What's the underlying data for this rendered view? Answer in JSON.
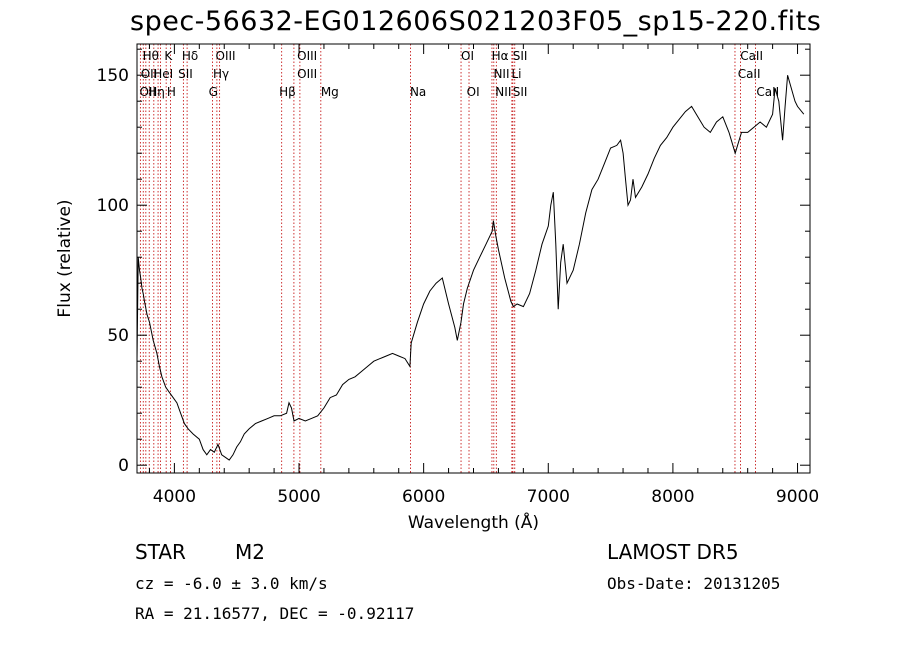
{
  "chart_data": {
    "type": "line",
    "title": "spec-56632-EG012606S021203F05_sp15-220.fits",
    "xlabel": "Wavelength (Å)",
    "ylabel": "Flux (relative)",
    "xlim": [
      3700,
      9100
    ],
    "ylim": [
      -3,
      162
    ],
    "xticks": [
      4000,
      5000,
      6000,
      7000,
      8000,
      9000
    ],
    "yticks": [
      0,
      50,
      100,
      150
    ],
    "x": [
      3700,
      3710,
      3720,
      3730,
      3740,
      3750,
      3760,
      3780,
      3800,
      3830,
      3860,
      3880,
      3900,
      3930,
      3960,
      3990,
      4020,
      4050,
      4080,
      4110,
      4150,
      4200,
      4230,
      4260,
      4290,
      4320,
      4350,
      4380,
      4410,
      4440,
      4470,
      4500,
      4530,
      4560,
      4600,
      4650,
      4700,
      4750,
      4800,
      4850,
      4900,
      4920,
      4940,
      4960,
      5000,
      5050,
      5100,
      5150,
      5200,
      5250,
      5300,
      5350,
      5400,
      5450,
      5500,
      5550,
      5600,
      5650,
      5700,
      5750,
      5800,
      5850,
      5890,
      5900,
      5950,
      6000,
      6050,
      6100,
      6150,
      6200,
      6250,
      6270,
      6300,
      6320,
      6350,
      6400,
      6450,
      6500,
      6550,
      6560,
      6580,
      6600,
      6650,
      6700,
      6720,
      6750,
      6800,
      6850,
      6900,
      6950,
      7000,
      7020,
      7040,
      7060,
      7080,
      7100,
      7120,
      7150,
      7200,
      7250,
      7300,
      7350,
      7400,
      7450,
      7500,
      7550,
      7580,
      7600,
      7620,
      7640,
      7660,
      7680,
      7700,
      7750,
      7800,
      7850,
      7900,
      7950,
      8000,
      8050,
      8100,
      8150,
      8200,
      8250,
      8300,
      8350,
      8400,
      8450,
      8500,
      8550,
      8600,
      8650,
      8700,
      8750,
      8800,
      8820,
      8850,
      8880,
      8900,
      8920,
      8950,
      8980,
      9000,
      9050
    ],
    "y": [
      40,
      80,
      75,
      72,
      68,
      66,
      63,
      58,
      55,
      48,
      43,
      38,
      34,
      30,
      28,
      26,
      24,
      20,
      16,
      14,
      12,
      10,
      6,
      4,
      6,
      5,
      8,
      4,
      3,
      2,
      4,
      7,
      9,
      12,
      14,
      16,
      17,
      18,
      19,
      19,
      20,
      24,
      22,
      17,
      18,
      17,
      18,
      19,
      22,
      26,
      27,
      31,
      33,
      34,
      36,
      38,
      40,
      41,
      42,
      43,
      42,
      41,
      38,
      47,
      55,
      62,
      67,
      70,
      72,
      62,
      53,
      48,
      55,
      62,
      68,
      75,
      80,
      85,
      90,
      94,
      88,
      83,
      72,
      63,
      61,
      62,
      61,
      66,
      75,
      85,
      92,
      100,
      105,
      85,
      60,
      78,
      85,
      70,
      75,
      85,
      97,
      106,
      110,
      116,
      122,
      123,
      125,
      120,
      110,
      100,
      102,
      110,
      103,
      107,
      112,
      118,
      123,
      126,
      130,
      133,
      136,
      138,
      134,
      130,
      128,
      132,
      134,
      128,
      120,
      128,
      128,
      130,
      132,
      130,
      135,
      145,
      140,
      125,
      138,
      150,
      145,
      140,
      138,
      135
    ],
    "lines": [
      {
        "wave": 3727,
        "labels": [
          "OII"
        ]
      },
      {
        "wave": 3750,
        "labels": [
          "Hθ"
        ]
      },
      {
        "wave": 3771,
        "labels": [
          "OIII"
        ]
      },
      {
        "wave": 3798,
        "labels": [
          "Hθ"
        ]
      },
      {
        "wave": 3835,
        "labels": [
          "Hη"
        ]
      },
      {
        "wave": 3869,
        "labels": [
          "HeI"
        ]
      },
      {
        "wave": 3889,
        "labels": [
          "HeI"
        ]
      },
      {
        "wave": 3934,
        "labels": [
          "K"
        ]
      },
      {
        "wave": 3969,
        "labels": [
          "H"
        ]
      },
      {
        "wave": 4072,
        "labels": [
          "SII"
        ]
      },
      {
        "wave": 4102,
        "labels": [
          "Hδ"
        ]
      },
      {
        "wave": 4305,
        "labels": [
          "G"
        ]
      },
      {
        "wave": 4341,
        "labels": [
          "Hγ"
        ]
      },
      {
        "wave": 4363,
        "labels": [
          "OIII"
        ]
      },
      {
        "wave": 4861,
        "labels": [
          "Hβ"
        ]
      },
      {
        "wave": 4959,
        "labels": [
          "OIII"
        ]
      },
      {
        "wave": 5007,
        "labels": [
          "OIII"
        ]
      },
      {
        "wave": 5175,
        "labels": [
          "Mg"
        ]
      },
      {
        "wave": 5894,
        "labels": [
          "Na"
        ]
      },
      {
        "wave": 6300,
        "labels": [
          "OI"
        ]
      },
      {
        "wave": 6364,
        "labels": [
          "OI"
        ]
      },
      {
        "wave": 6548,
        "labels": [
          "NII"
        ]
      },
      {
        "wave": 6563,
        "labels": [
          "Hα"
        ]
      },
      {
        "wave": 6583,
        "labels": [
          "NII"
        ]
      },
      {
        "wave": 6708,
        "labels": [
          "Li"
        ]
      },
      {
        "wave": 6716,
        "labels": [
          "SII"
        ]
      },
      {
        "wave": 6731,
        "labels": [
          "SII"
        ]
      },
      {
        "wave": 8498,
        "labels": [
          "CaII"
        ]
      },
      {
        "wave": 8542,
        "labels": [
          "CaII"
        ]
      },
      {
        "wave": 8662,
        "labels": [
          "CaII"
        ]
      }
    ],
    "line_labels_row1": [
      {
        "wave": 3745,
        "text": "Hθ"
      },
      {
        "wave": 3920,
        "text": "K"
      },
      {
        "wave": 4060,
        "text": "Hδ"
      },
      {
        "wave": 4330,
        "text": "OIII"
      },
      {
        "wave": 4985,
        "text": "OIII"
      },
      {
        "wave": 6300,
        "text": "OI"
      },
      {
        "wave": 6545,
        "text": "Hα"
      },
      {
        "wave": 6715,
        "text": "SII"
      },
      {
        "wave": 8540,
        "text": "CaII"
      }
    ],
    "line_labels_row2": [
      {
        "wave": 3730,
        "text": "OII"
      },
      {
        "wave": 3830,
        "text": "HeI"
      },
      {
        "wave": 4030,
        "text": "SII"
      },
      {
        "wave": 4310,
        "text": "Hγ"
      },
      {
        "wave": 4985,
        "text": "OIII"
      },
      {
        "wave": 6560,
        "text": "NII"
      },
      {
        "wave": 6705,
        "text": "Li"
      },
      {
        "wave": 8520,
        "text": "CaII"
      }
    ],
    "line_labels_row3": [
      {
        "wave": 3720,
        "text": "OII"
      },
      {
        "wave": 3790,
        "text": "Hη"
      },
      {
        "wave": 3940,
        "text": "H"
      },
      {
        "wave": 4275,
        "text": "G"
      },
      {
        "wave": 4840,
        "text": "Hβ"
      },
      {
        "wave": 5175,
        "text": "Mg"
      },
      {
        "wave": 5890,
        "text": "Na"
      },
      {
        "wave": 6345,
        "text": "OI"
      },
      {
        "wave": 6575,
        "text": "NII"
      },
      {
        "wave": 6715,
        "text": "SII"
      },
      {
        "wave": 8670,
        "text": "CaII"
      }
    ]
  },
  "footer": {
    "class_label": "STAR",
    "subclass_label": "M2",
    "survey": "LAMOST DR5",
    "redshift": "cz = -6.0 ± 3.0 km/s",
    "obs_date": "Obs-Date: 20131205",
    "coords": "RA =  21.16577, DEC =  -0.92117"
  },
  "colors": {
    "spectrum": "#000000",
    "line_marker": "#c00000",
    "axis": "#000000"
  }
}
